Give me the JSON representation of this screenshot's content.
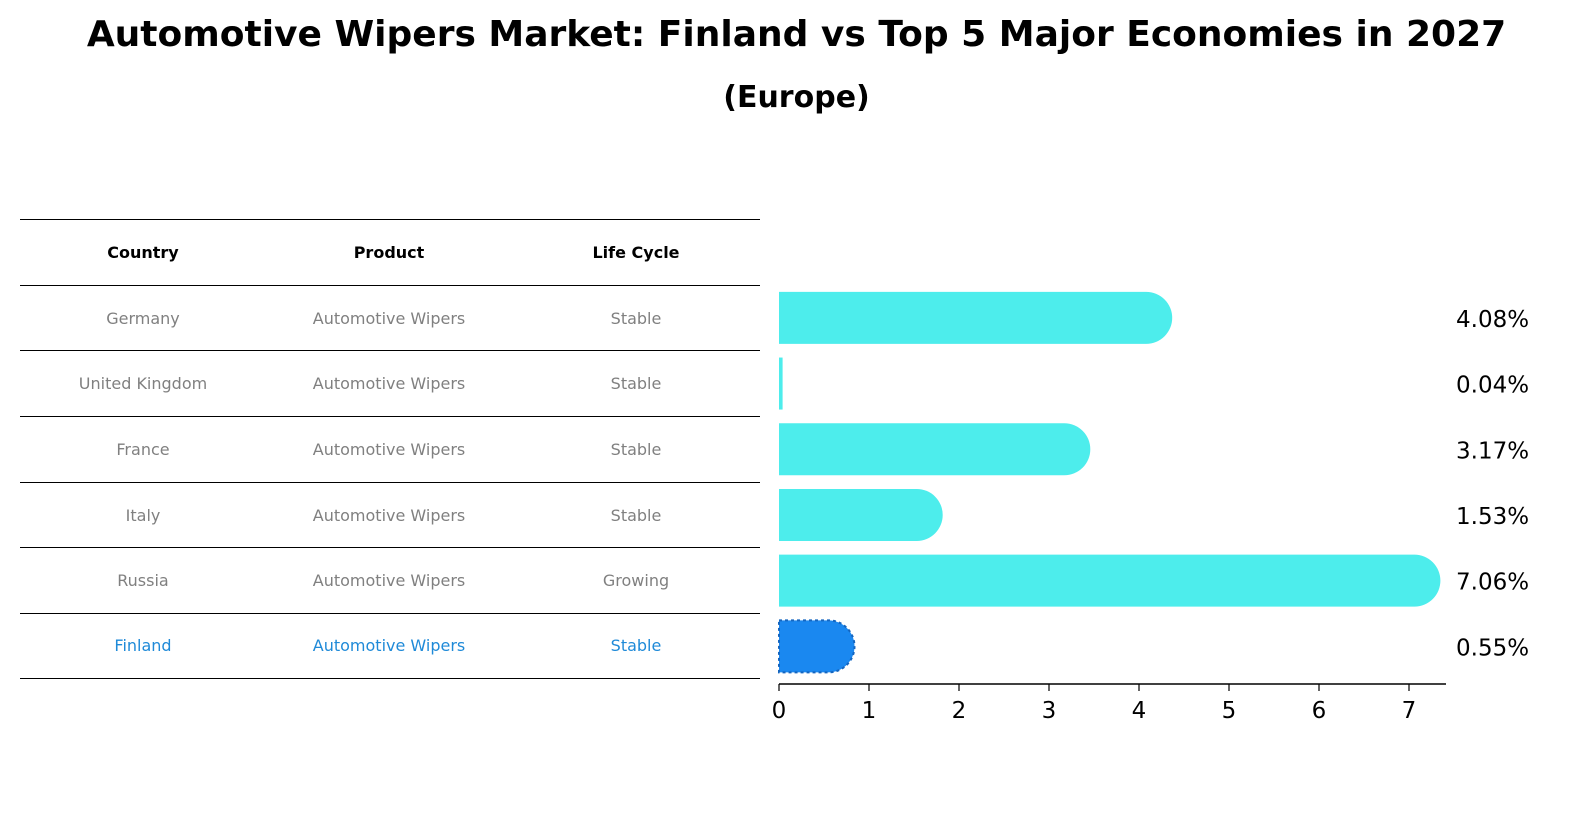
{
  "title": "Automotive Wipers Market: Finland vs Top 5 Major Economies in 2027",
  "subtitle": "(Europe)",
  "table": {
    "headers": [
      "Country",
      "Product",
      "Life Cycle"
    ],
    "rows": [
      [
        "Germany",
        "Automotive Wipers",
        "Stable"
      ],
      [
        "United Kingdom",
        "Automotive Wipers",
        "Stable"
      ],
      [
        "France",
        "Automotive Wipers",
        "Stable"
      ],
      [
        "Italy",
        "Automotive Wipers",
        "Stable"
      ],
      [
        "Russia",
        "Automotive Wipers",
        "Growing"
      ],
      [
        "Finland",
        "Automotive Wipers",
        "Stable"
      ]
    ],
    "highlight_row": 5
  },
  "chart_data": {
    "type": "bar",
    "orientation": "horizontal",
    "categories": [
      "Germany",
      "United Kingdom",
      "France",
      "Italy",
      "Russia",
      "Finland"
    ],
    "values": [
      4.08,
      0.04,
      3.17,
      1.53,
      7.06,
      0.55
    ],
    "value_labels": [
      "4.08%",
      "0.04%",
      "3.17%",
      "1.53%",
      "7.06%",
      "0.55%"
    ],
    "xlim": [
      0,
      7.4
    ],
    "xticks": [
      0,
      1,
      2,
      3,
      4,
      5,
      6,
      7
    ],
    "grid": false,
    "colors": {
      "default": "#4dedec",
      "highlight": "#1a88f0"
    }
  }
}
